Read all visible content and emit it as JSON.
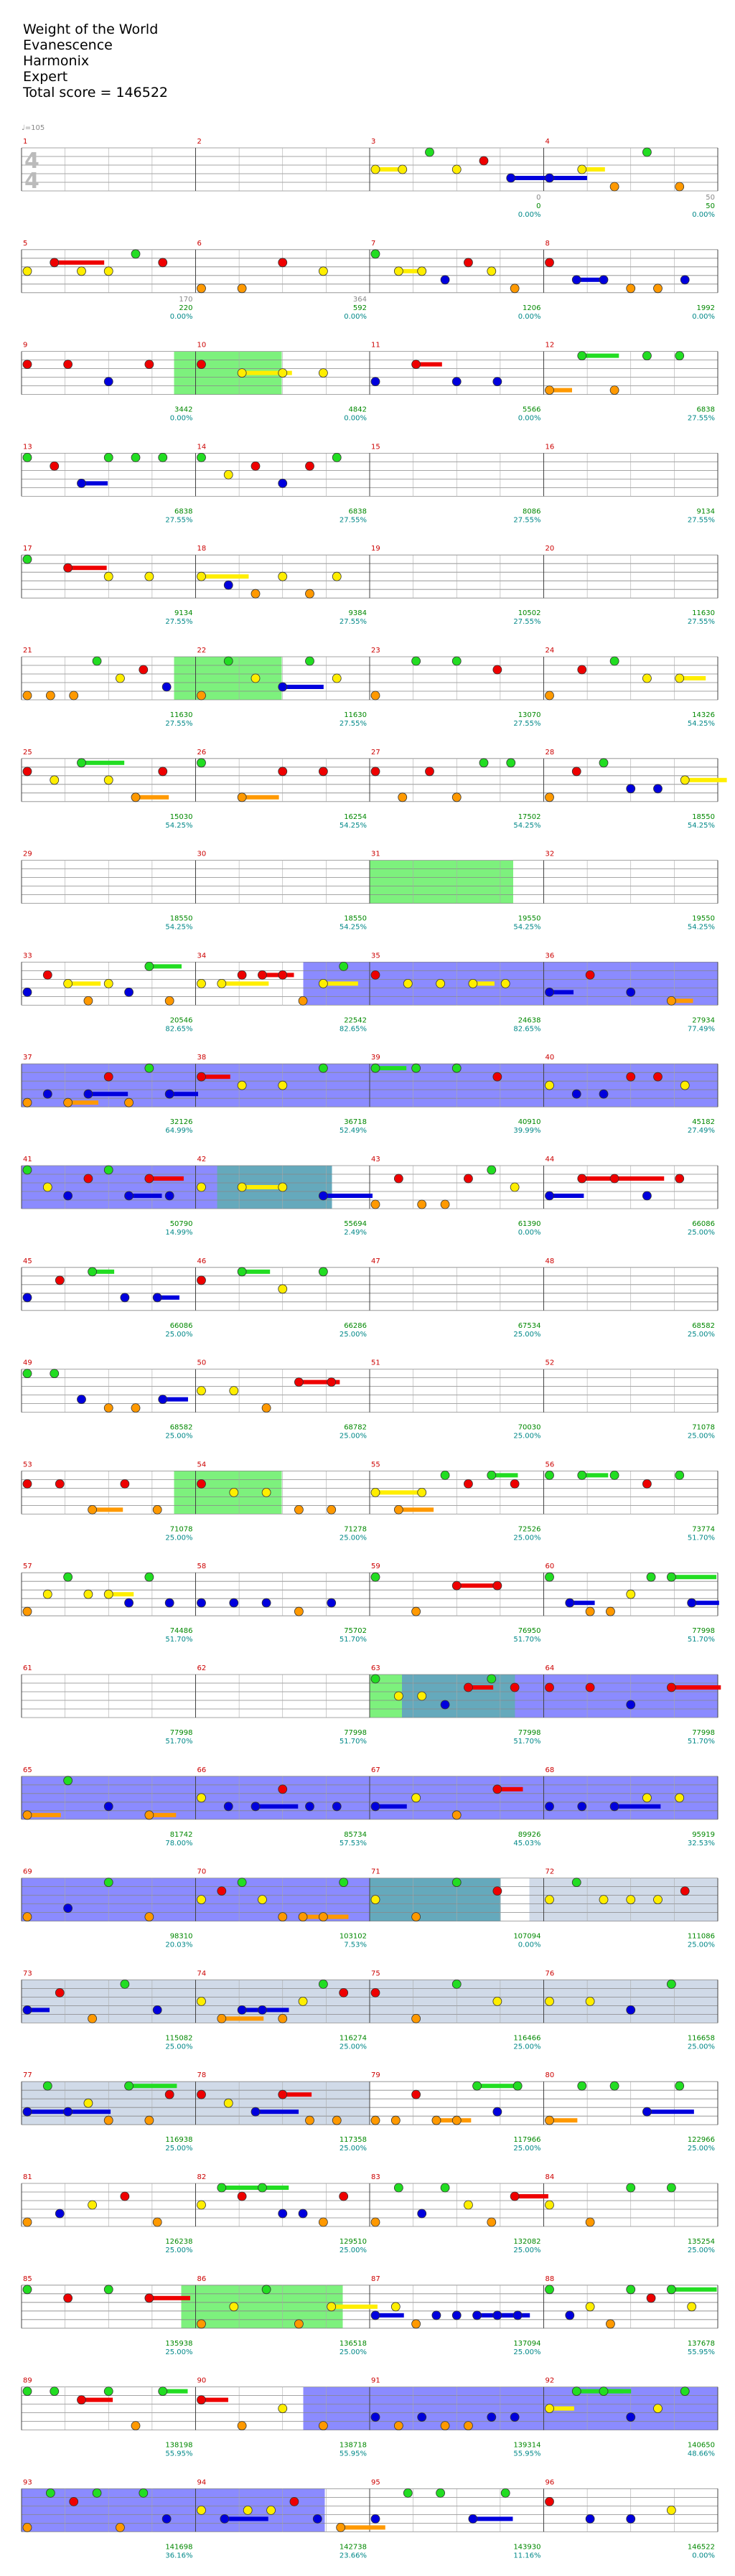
{
  "header": {
    "song": "Weight of the World",
    "artist": "Evanescence",
    "charter": "Harmonix",
    "difficulty": "Expert",
    "total_score_label": "Total score = 146522"
  },
  "tempo_label": "♩=105",
  "time_signature": [
    "4",
    "4"
  ],
  "colors": {
    "green": "#22dd22",
    "red": "#ee0000",
    "yellow": "#ffee00",
    "blue": "#0000dd",
    "orange": "#ff9900",
    "sp_phrase": "#66ee66",
    "sp_active": "#7777ff",
    "sp_overlap": "#4a9ab0",
    "solo": "#c8d4e4",
    "score_text": "#008800",
    "pct_text": "#008888",
    "bar_num": "#cc0000",
    "sub_text": "#888888"
  },
  "measures": [
    {
      "n": "1",
      "sub": "",
      "score": "",
      "pct": ""
    },
    {
      "n": "2",
      "sub": "",
      "score": "",
      "pct": ""
    },
    {
      "n": "3",
      "sub": "0",
      "score": "0",
      "pct": "0.00%"
    },
    {
      "n": "4",
      "sub": "50",
      "score": "50",
      "pct": "0.00%"
    },
    {
      "n": "5",
      "sub": "170",
      "score": "220",
      "pct": "0.00%"
    },
    {
      "n": "6",
      "sub": "364",
      "score": "592",
      "pct": "0.00%"
    },
    {
      "n": "7",
      "sub": "",
      "score": "1206",
      "pct": "0.00%"
    },
    {
      "n": "8",
      "sub": "",
      "score": "1992",
      "pct": "0.00%"
    },
    {
      "n": "9",
      "sub": "",
      "score": "3442",
      "pct": "0.00%"
    },
    {
      "n": "10",
      "sub": "",
      "score": "4842",
      "pct": "0.00%"
    },
    {
      "n": "11",
      "sub": "",
      "score": "5566",
      "pct": "0.00%"
    },
    {
      "n": "12",
      "sub": "",
      "score": "6838",
      "pct": "27.55%"
    },
    {
      "n": "13",
      "sub": "",
      "score": "6838",
      "pct": "27.55%"
    },
    {
      "n": "14",
      "sub": "",
      "score": "6838",
      "pct": "27.55%"
    },
    {
      "n": "15",
      "sub": "",
      "score": "8086",
      "pct": "27.55%"
    },
    {
      "n": "16",
      "sub": "",
      "score": "9134",
      "pct": "27.55%"
    },
    {
      "n": "17",
      "sub": "",
      "score": "9134",
      "pct": "27.55%"
    },
    {
      "n": "18",
      "sub": "",
      "score": "9384",
      "pct": "27.55%"
    },
    {
      "n": "19",
      "sub": "",
      "score": "10502",
      "pct": "27.55%"
    },
    {
      "n": "20",
      "sub": "",
      "score": "11630",
      "pct": "27.55%"
    },
    {
      "n": "21",
      "sub": "",
      "score": "11630",
      "pct": "27.55%"
    },
    {
      "n": "22",
      "sub": "",
      "score": "11630",
      "pct": "27.55%"
    },
    {
      "n": "23",
      "sub": "",
      "score": "13070",
      "pct": "27.55%"
    },
    {
      "n": "24",
      "sub": "",
      "score": "14326",
      "pct": "54.25%"
    },
    {
      "n": "25",
      "sub": "",
      "score": "15030",
      "pct": "54.25%"
    },
    {
      "n": "26",
      "sub": "",
      "score": "16254",
      "pct": "54.25%"
    },
    {
      "n": "27",
      "sub": "",
      "score": "17502",
      "pct": "54.25%"
    },
    {
      "n": "28",
      "sub": "",
      "score": "18550",
      "pct": "54.25%"
    },
    {
      "n": "29",
      "sub": "",
      "score": "18550",
      "pct": "54.25%"
    },
    {
      "n": "30",
      "sub": "",
      "score": "18550",
      "pct": "54.25%"
    },
    {
      "n": "31",
      "sub": "",
      "score": "19550",
      "pct": "54.25%"
    },
    {
      "n": "32",
      "sub": "",
      "score": "19550",
      "pct": "54.25%"
    },
    {
      "n": "33",
      "sub": "",
      "score": "20546",
      "pct": "82.65%"
    },
    {
      "n": "34",
      "sub": "",
      "score": "22542",
      "pct": "82.65%"
    },
    {
      "n": "35",
      "sub": "",
      "score": "24638",
      "pct": "82.65%"
    },
    {
      "n": "36",
      "sub": "",
      "score": "27934",
      "pct": "77.49%"
    },
    {
      "n": "37",
      "sub": "",
      "score": "32126",
      "pct": "64.99%"
    },
    {
      "n": "38",
      "sub": "",
      "score": "36718",
      "pct": "52.49%"
    },
    {
      "n": "39",
      "sub": "",
      "score": "40910",
      "pct": "39.99%"
    },
    {
      "n": "40",
      "sub": "",
      "score": "45182",
      "pct": "27.49%"
    },
    {
      "n": "41",
      "sub": "",
      "score": "50790",
      "pct": "14.99%"
    },
    {
      "n": "42",
      "sub": "",
      "score": "55694",
      "pct": "2.49%"
    },
    {
      "n": "43",
      "sub": "",
      "score": "61390",
      "pct": "0.00%"
    },
    {
      "n": "44",
      "sub": "",
      "score": "66086",
      "pct": "25.00%"
    },
    {
      "n": "45",
      "sub": "",
      "score": "66086",
      "pct": "25.00%"
    },
    {
      "n": "46",
      "sub": "",
      "score": "66286",
      "pct": "25.00%"
    },
    {
      "n": "47",
      "sub": "",
      "score": "67534",
      "pct": "25.00%"
    },
    {
      "n": "48",
      "sub": "",
      "score": "68582",
      "pct": "25.00%"
    },
    {
      "n": "49",
      "sub": "",
      "score": "68582",
      "pct": "25.00%"
    },
    {
      "n": "50",
      "sub": "",
      "score": "68782",
      "pct": "25.00%"
    },
    {
      "n": "51",
      "sub": "",
      "score": "70030",
      "pct": "25.00%"
    },
    {
      "n": "52",
      "sub": "",
      "score": "71078",
      "pct": "25.00%"
    },
    {
      "n": "53",
      "sub": "",
      "score": "71078",
      "pct": "25.00%"
    },
    {
      "n": "54",
      "sub": "",
      "score": "71278",
      "pct": "25.00%"
    },
    {
      "n": "55",
      "sub": "",
      "score": "72526",
      "pct": "25.00%"
    },
    {
      "n": "56",
      "sub": "",
      "score": "73774",
      "pct": "51.70%"
    },
    {
      "n": "57",
      "sub": "",
      "score": "74486",
      "pct": "51.70%"
    },
    {
      "n": "58",
      "sub": "",
      "score": "75702",
      "pct": "51.70%"
    },
    {
      "n": "59",
      "sub": "",
      "score": "76950",
      "pct": "51.70%"
    },
    {
      "n": "60",
      "sub": "",
      "score": "77998",
      "pct": "51.70%"
    },
    {
      "n": "61",
      "sub": "",
      "score": "77998",
      "pct": "51.70%"
    },
    {
      "n": "62",
      "sub": "",
      "score": "77998",
      "pct": "51.70%"
    },
    {
      "n": "63",
      "sub": "",
      "score": "77998",
      "pct": "51.70%"
    },
    {
      "n": "64",
      "sub": "",
      "score": "77998",
      "pct": "51.70%"
    },
    {
      "n": "65",
      "sub": "",
      "score": "81742",
      "pct": "78.00%"
    },
    {
      "n": "66",
      "sub": "",
      "score": "85734",
      "pct": "57.53%"
    },
    {
      "n": "67",
      "sub": "",
      "score": "89926",
      "pct": "45.03%"
    },
    {
      "n": "68",
      "sub": "",
      "score": "95919",
      "pct": "32.53%"
    },
    {
      "n": "69",
      "sub": "",
      "score": "98310",
      "pct": "20.03%"
    },
    {
      "n": "70",
      "sub": "",
      "score": "103102",
      "pct": "7.53%"
    },
    {
      "n": "71",
      "sub": "",
      "score": "107094",
      "pct": "0.00%"
    },
    {
      "n": "72",
      "sub": "",
      "score": "111086",
      "pct": "25.00%"
    },
    {
      "n": "73",
      "sub": "",
      "score": "115082",
      "pct": "25.00%"
    },
    {
      "n": "74",
      "sub": "",
      "score": "116274",
      "pct": "25.00%"
    },
    {
      "n": "75",
      "sub": "",
      "score": "116466",
      "pct": "25.00%"
    },
    {
      "n": "76",
      "sub": "",
      "score": "116658",
      "pct": "25.00%"
    },
    {
      "n": "77",
      "sub": "",
      "score": "116938",
      "pct": "25.00%"
    },
    {
      "n": "78",
      "sub": "",
      "score": "117358",
      "pct": "25.00%"
    },
    {
      "n": "79",
      "sub": "",
      "score": "117966",
      "pct": "25.00%"
    },
    {
      "n": "80",
      "sub": "",
      "score": "122966",
      "pct": "25.00%"
    },
    {
      "n": "81",
      "sub": "",
      "score": "126238",
      "pct": "25.00%"
    },
    {
      "n": "82",
      "sub": "",
      "score": "129510",
      "pct": "25.00%"
    },
    {
      "n": "83",
      "sub": "",
      "score": "132082",
      "pct": "25.00%"
    },
    {
      "n": "84",
      "sub": "",
      "score": "135254",
      "pct": "25.00%"
    },
    {
      "n": "85",
      "sub": "",
      "score": "135938",
      "pct": "25.00%"
    },
    {
      "n": "86",
      "sub": "",
      "score": "136518",
      "pct": "25.00%"
    },
    {
      "n": "87",
      "sub": "",
      "score": "137094",
      "pct": "25.00%"
    },
    {
      "n": "88",
      "sub": "",
      "score": "137678",
      "pct": "55.95%"
    },
    {
      "n": "89",
      "sub": "",
      "score": "138198",
      "pct": "55.95%"
    },
    {
      "n": "90",
      "sub": "",
      "score": "138718",
      "pct": "55.95%"
    },
    {
      "n": "91",
      "sub": "",
      "score": "139314",
      "pct": "55.95%"
    },
    {
      "n": "92",
      "sub": "",
      "score": "140650",
      "pct": "48.66%"
    },
    {
      "n": "93",
      "sub": "",
      "score": "141698",
      "pct": "36.16%"
    },
    {
      "n": "94",
      "sub": "",
      "score": "142738",
      "pct": "23.66%"
    },
    {
      "n": "95",
      "sub": "",
      "score": "143930",
      "pct": "11.16%"
    },
    {
      "n": "96",
      "sub": "",
      "score": "146522",
      "pct": "0.00%"
    }
  ]
}
